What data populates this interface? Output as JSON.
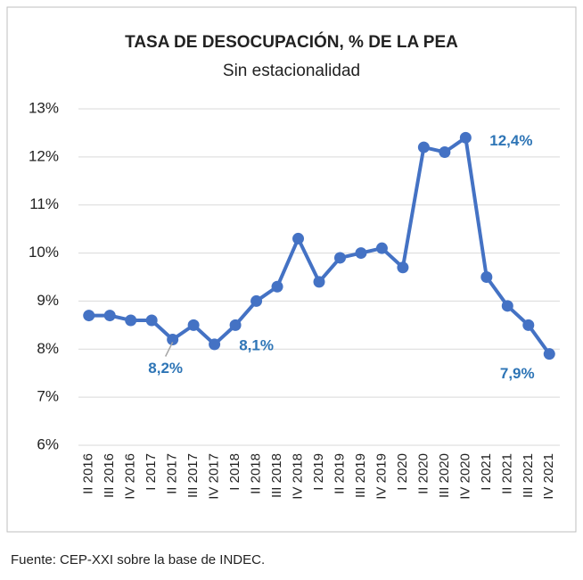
{
  "chart_data": {
    "type": "line",
    "title": "TASA DE DESOCUPACIÓN, % DE LA PEA",
    "subtitle": "Sin estacionalidad",
    "source": "Fuente: CEP-XXI sobre la base de INDEC.",
    "categories": [
      "II 2016",
      "III 2016",
      "IV 2016",
      "I 2017",
      "II 2017",
      "III 2017",
      "IV 2017",
      "I 2018",
      "II 2018",
      "III 2018",
      "IV 2018",
      "I 2019",
      "II 2019",
      "III 2019",
      "IV 2019",
      "I 2020",
      "II 2020",
      "III 2020",
      "IV 2020",
      "I 2021",
      "II 2021",
      "III 2021",
      "IV 2021"
    ],
    "values": [
      8.7,
      8.7,
      8.6,
      8.6,
      8.2,
      8.5,
      8.1,
      8.5,
      9.0,
      9.3,
      10.3,
      9.4,
      9.9,
      10.0,
      10.1,
      9.7,
      12.2,
      12.1,
      12.4,
      9.5,
      8.9,
      8.5,
      7.9
    ],
    "value_labels": [
      null,
      null,
      null,
      null,
      "8,2%",
      null,
      "8,1%",
      null,
      null,
      null,
      null,
      null,
      null,
      null,
      null,
      null,
      null,
      null,
      "12,4%",
      null,
      null,
      null,
      "7,9%"
    ],
    "color": "#4472c4",
    "ylim": [
      6,
      13
    ],
    "yticks": [
      {
        "value": 6,
        "label": "6%"
      },
      {
        "value": 7,
        "label": "7%"
      },
      {
        "value": 8,
        "label": "8%"
      },
      {
        "value": 9,
        "label": "9%"
      },
      {
        "value": 10,
        "label": "10%"
      },
      {
        "value": 11,
        "label": "11%"
      },
      {
        "value": 12,
        "label": "12%"
      },
      {
        "value": 13,
        "label": "13%"
      }
    ],
    "grid": true
  }
}
